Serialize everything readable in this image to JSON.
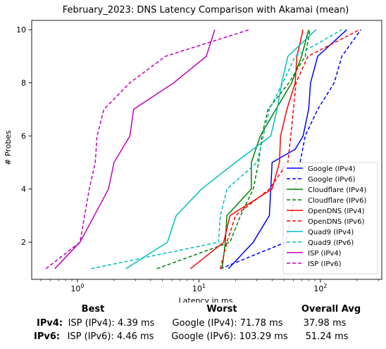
{
  "chart_data": {
    "type": "line",
    "title": "February_2023: DNS Latency Comparison with Akamai (mean)",
    "xlabel": "Latency in ms",
    "ylabel": "# Probes",
    "xscale": "log",
    "xlim": [
      0.42,
      320
    ],
    "ylim": [
      0.6,
      10.35
    ],
    "xticks": [
      {
        "value": 1,
        "label": "10⁰"
      },
      {
        "value": 10,
        "label": "10¹"
      },
      {
        "value": 100,
        "label": "10²"
      }
    ],
    "yticks": [
      2,
      4,
      6,
      8,
      10
    ],
    "grid": false,
    "legend_position": "lower-right",
    "series": [
      {
        "name": "Google (IPv4)",
        "color": "#0000ff",
        "dash": "solid",
        "points": [
          [
            17.5,
            1
          ],
          [
            28,
            2
          ],
          [
            38,
            3
          ],
          [
            39,
            4
          ],
          [
            40,
            5
          ],
          [
            62,
            5.5
          ],
          [
            72,
            6
          ],
          [
            80,
            7
          ],
          [
            83,
            8
          ],
          [
            95,
            9
          ],
          [
            165,
            10
          ]
        ]
      },
      {
        "name": "Google (IPv6)",
        "color": "#0000ff",
        "dash": "dashed",
        "points": [
          [
            15,
            1
          ],
          [
            52,
            2
          ],
          [
            58,
            3
          ],
          [
            62,
            4
          ],
          [
            68,
            5
          ],
          [
            75,
            6
          ],
          [
            95,
            7
          ],
          [
            130,
            8
          ],
          [
            150,
            9
          ],
          [
            215,
            10
          ]
        ]
      },
      {
        "name": "Cloudflare (IPv4)",
        "color": "#008000",
        "dash": "solid",
        "points": [
          [
            15.5,
            1
          ],
          [
            16.5,
            2
          ],
          [
            17,
            3
          ],
          [
            27,
            4
          ],
          [
            27,
            5
          ],
          [
            32,
            6
          ],
          [
            43,
            7
          ],
          [
            58,
            8
          ],
          [
            70,
            9
          ],
          [
            80,
            10
          ]
        ]
      },
      {
        "name": "Cloudflare (IPv6)",
        "color": "#008000",
        "dash": "dashed",
        "points": [
          [
            4.5,
            1
          ],
          [
            18,
            2
          ],
          [
            22,
            3
          ],
          [
            28,
            4
          ],
          [
            31,
            5
          ],
          [
            33,
            6
          ],
          [
            37,
            7
          ],
          [
            55,
            8
          ],
          [
            75,
            9
          ],
          [
            82,
            10
          ]
        ]
      },
      {
        "name": "OpenDNS (IPv4)",
        "color": "#ff0000",
        "dash": "solid",
        "points": [
          [
            8.5,
            1
          ],
          [
            16,
            2
          ],
          [
            18,
            3
          ],
          [
            40,
            4
          ],
          [
            46,
            5
          ],
          [
            47,
            6
          ],
          [
            53,
            7
          ],
          [
            62,
            8
          ],
          [
            64,
            9
          ],
          [
            72,
            10
          ]
        ]
      },
      {
        "name": "OpenDNS (IPv6)",
        "color": "#ff0000",
        "dash": "dashed",
        "points": [
          [
            15,
            1
          ],
          [
            17,
            2
          ],
          [
            20,
            3
          ],
          [
            38,
            4
          ],
          [
            54,
            5
          ],
          [
            57,
            6
          ],
          [
            60,
            7
          ],
          [
            63,
            8
          ],
          [
            79,
            9
          ],
          [
            210,
            10
          ]
        ]
      },
      {
        "name": "Quad9 (IPv4)",
        "color": "#00bfbf",
        "dash": "solid",
        "points": [
          [
            2.5,
            1
          ],
          [
            5.5,
            2
          ],
          [
            6.5,
            3
          ],
          [
            10.5,
            4
          ],
          [
            20,
            5
          ],
          [
            39,
            6
          ],
          [
            44,
            7
          ],
          [
            48,
            8
          ],
          [
            54,
            9
          ],
          [
            92,
            10
          ]
        ]
      },
      {
        "name": "Quad9 (IPv6)",
        "color": "#00bfbf",
        "dash": "dashed",
        "points": [
          [
            1.3,
            1
          ],
          [
            14.5,
            2
          ],
          [
            15,
            3
          ],
          [
            17,
            4
          ],
          [
            30,
            5
          ],
          [
            34,
            6
          ],
          [
            38,
            7
          ],
          [
            49,
            8
          ],
          [
            62,
            9
          ],
          [
            150,
            10
          ]
        ]
      },
      {
        "name": "ISP (IPv4)",
        "color": "#bf00bf",
        "dash": "solid",
        "points": [
          [
            0.65,
            1
          ],
          [
            1.05,
            2
          ],
          [
            1.8,
            4
          ],
          [
            2.0,
            5
          ],
          [
            2.7,
            6
          ],
          [
            2.9,
            7
          ],
          [
            6.2,
            8
          ],
          [
            11.5,
            9
          ],
          [
            13.5,
            10
          ]
        ]
      },
      {
        "name": "ISP (IPv6)",
        "color": "#bf00bf",
        "dash": "dashed",
        "points": [
          [
            0.55,
            1
          ],
          [
            1.05,
            2
          ],
          [
            1.25,
            4
          ],
          [
            1.4,
            5
          ],
          [
            1.45,
            6
          ],
          [
            1.65,
            7
          ],
          [
            2.7,
            8
          ],
          [
            5.3,
            9
          ],
          [
            26,
            10
          ]
        ]
      }
    ]
  },
  "summary": {
    "headers": {
      "best": "Best",
      "worst": "Worst",
      "avg": "Overall Avg"
    },
    "rows": [
      {
        "label": "IPv4:",
        "best": "ISP (IPv4): 4.39 ms",
        "worst": "Google (IPv4): 71.78 ms",
        "avg": "37.98 ms"
      },
      {
        "label": "IPv6:",
        "best": "ISP (IPv6): 4.46 ms",
        "worst": "Google (IPv6): 103.29 ms",
        "avg": "51.24 ms"
      }
    ]
  }
}
